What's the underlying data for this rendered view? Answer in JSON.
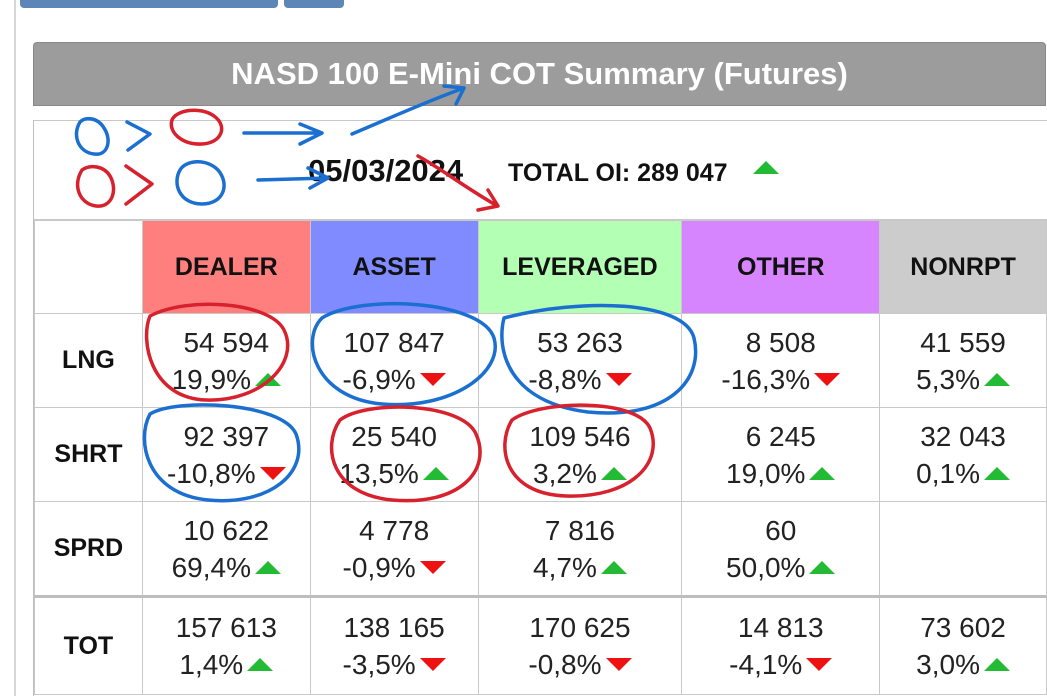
{
  "title": "NASD 100 E-Mini COT Summary (Futures)",
  "date": "05/03/2024",
  "total_oi": {
    "label": "TOTAL OI: 289 047",
    "trend": "up"
  },
  "columns": [
    "DEALER",
    "ASSET",
    "LEVERAGED",
    "OTHER",
    "NONRPT"
  ],
  "column_colors": [
    "#ff7f7f",
    "#7f8bff",
    "#b3ffb3",
    "#d685ff",
    "#cccccc"
  ],
  "colors": {
    "up": "#22bb33",
    "down": "#ee1111",
    "title_bar": "#9c9c9c"
  },
  "rows": [
    {
      "label": "LNG",
      "cells": [
        {
          "value": "54 594",
          "pct": "19,9%",
          "trend": "up"
        },
        {
          "value": "107 847",
          "pct": "-6,9%",
          "trend": "down"
        },
        {
          "value": "53 263",
          "pct": "-8,8%",
          "trend": "down"
        },
        {
          "value": "8 508",
          "pct": "-16,3%",
          "trend": "down"
        },
        {
          "value": "41 559",
          "pct": "5,3%",
          "trend": "up"
        }
      ]
    },
    {
      "label": "SHRT",
      "cells": [
        {
          "value": "92 397",
          "pct": "-10,8%",
          "trend": "down"
        },
        {
          "value": "25 540",
          "pct": "13,5%",
          "trend": "up"
        },
        {
          "value": "109 546",
          "pct": "3,2%",
          "trend": "up"
        },
        {
          "value": "6 245",
          "pct": "19,0%",
          "trend": "up"
        },
        {
          "value": "32 043",
          "pct": "0,1%",
          "trend": "up"
        }
      ]
    },
    {
      "label": "SPRD",
      "cells": [
        {
          "value": "10 622",
          "pct": "69,4%",
          "trend": "up"
        },
        {
          "value": "4 778",
          "pct": "-0,9%",
          "trend": "down"
        },
        {
          "value": "7 816",
          "pct": "4,7%",
          "trend": "up"
        },
        {
          "value": "60",
          "pct": "50,0%",
          "trend": "up"
        },
        {
          "value": "",
          "pct": "",
          "trend": ""
        }
      ]
    },
    {
      "label": "TOT",
      "cells": [
        {
          "value": "157 613",
          "pct": "1,4%",
          "trend": "up"
        },
        {
          "value": "138 165",
          "pct": "-3,5%",
          "trend": "down"
        },
        {
          "value": "170 625",
          "pct": "-0,8%",
          "trend": "down"
        },
        {
          "value": "14 813",
          "pct": "-4,1%",
          "trend": "down"
        },
        {
          "value": "73 602",
          "pct": "3,0%",
          "trend": "up"
        }
      ]
    }
  ]
}
